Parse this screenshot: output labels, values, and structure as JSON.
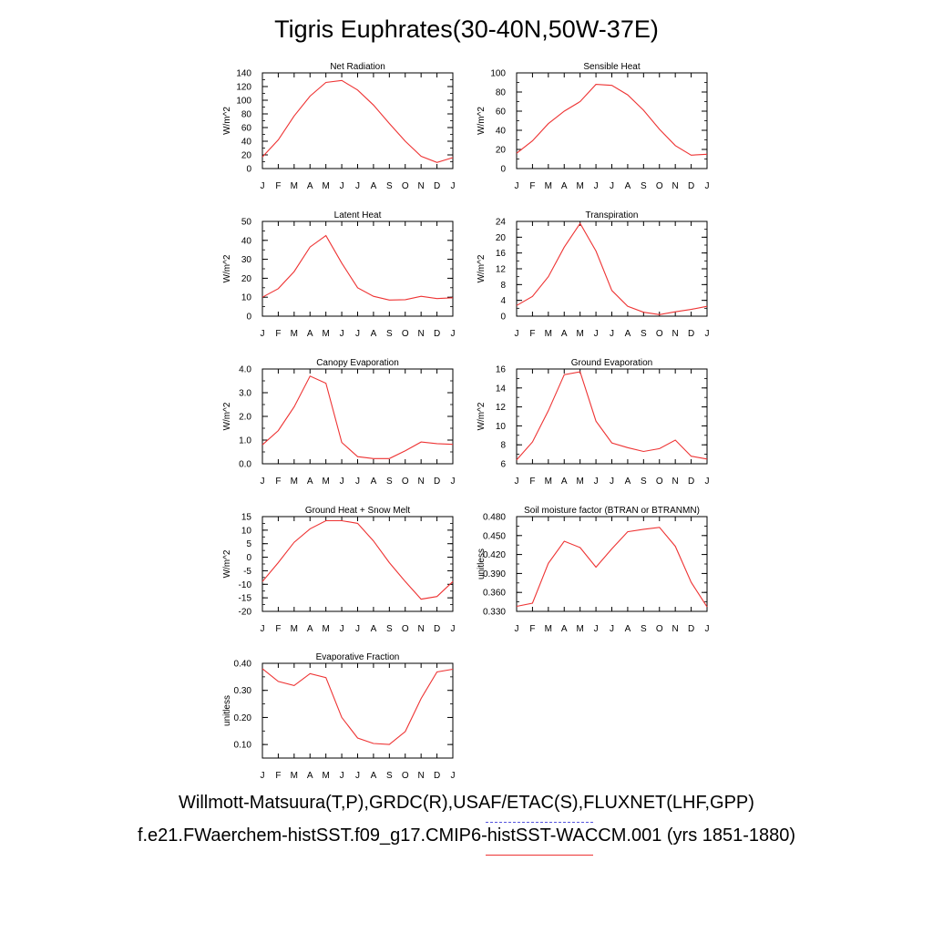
{
  "title": "Tigris Euphrates(30-40N,50W-37E)",
  "legend": {
    "observations": "Willmott-Matsuura(T,P),GRDC(R),USAF/ETAC(S),FLUXNET(LHF,GPP)",
    "observations_color": "#5555dd",
    "model": "f.e21.FWaerchem-histSST.f09_g17.CMIP6-histSST-WACCM.001 (yrs 1851-1880)",
    "model_color": "#ee3333"
  },
  "chart_data": [
    {
      "type": "line",
      "title": "Net Radiation",
      "ylabel": "W/m^2",
      "categories": [
        "J",
        "F",
        "M",
        "A",
        "M",
        "J",
        "J",
        "A",
        "S",
        "O",
        "N",
        "D",
        "J"
      ],
      "ylim": [
        0,
        140
      ],
      "yticks": [
        "0",
        "20",
        "40",
        "60",
        "80",
        "100",
        "120",
        "140"
      ],
      "minor_step": 10,
      "series": [
        {
          "values": [
            17,
            42,
            77,
            106,
            126,
            129,
            115,
            93,
            66,
            40,
            18,
            9,
            16
          ]
        }
      ]
    },
    {
      "type": "line",
      "title": "Sensible Heat",
      "ylabel": "W/m^2",
      "categories": [
        "J",
        "F",
        "M",
        "A",
        "M",
        "J",
        "J",
        "A",
        "S",
        "O",
        "N",
        "D",
        "J"
      ],
      "ylim": [
        0,
        100
      ],
      "yticks": [
        "0",
        "20",
        "40",
        "60",
        "80",
        "100"
      ],
      "minor_step": 10,
      "series": [
        {
          "values": [
            16,
            29,
            47,
            60,
            70,
            88,
            87,
            77,
            61,
            41,
            24,
            14,
            15
          ]
        }
      ]
    },
    {
      "type": "line",
      "title": "Latent Heat",
      "ylabel": "W/m^2",
      "categories": [
        "J",
        "F",
        "M",
        "A",
        "M",
        "J",
        "J",
        "A",
        "S",
        "O",
        "N",
        "D",
        "J"
      ],
      "ylim": [
        0,
        50
      ],
      "yticks": [
        "0",
        "10",
        "20",
        "30",
        "40",
        "50"
      ],
      "minor_step": 5,
      "series": [
        {
          "values": [
            10,
            14.5,
            23.5,
            36.5,
            42.5,
            28,
            15,
            10.5,
            8.5,
            8.7,
            10.5,
            9.3,
            9.7
          ]
        }
      ]
    },
    {
      "type": "line",
      "title": "Transpiration",
      "ylabel": "W/m^2",
      "categories": [
        "J",
        "F",
        "M",
        "A",
        "M",
        "J",
        "J",
        "A",
        "S",
        "O",
        "N",
        "D",
        "J"
      ],
      "ylim": [
        0,
        24
      ],
      "yticks": [
        "0",
        "4",
        "8",
        "12",
        "16",
        "20",
        "24"
      ],
      "minor_step": 2,
      "series": [
        {
          "values": [
            2.7,
            5,
            10,
            17.5,
            23.5,
            16.5,
            6.5,
            2.5,
            1,
            0.4,
            1.1,
            1.7,
            2.5
          ]
        }
      ]
    },
    {
      "type": "line",
      "title": "Canopy Evaporation",
      "ylabel": "W/m^2",
      "categories": [
        "J",
        "F",
        "M",
        "A",
        "M",
        "J",
        "J",
        "A",
        "S",
        "O",
        "N",
        "D",
        "J"
      ],
      "ylim": [
        0,
        4
      ],
      "yticks": [
        "0.0",
        "1.0",
        "2.0",
        "3.0",
        "4.0"
      ],
      "minor_step": 0.5,
      "series": [
        {
          "values": [
            0.8,
            1.4,
            2.4,
            3.7,
            3.4,
            0.9,
            0.3,
            0.22,
            0.22,
            0.55,
            0.92,
            0.85,
            0.82
          ]
        }
      ]
    },
    {
      "type": "line",
      "title": "Ground Evaporation",
      "ylabel": "W/m^2",
      "categories": [
        "J",
        "F",
        "M",
        "A",
        "M",
        "J",
        "J",
        "A",
        "S",
        "O",
        "N",
        "D",
        "J"
      ],
      "ylim": [
        6,
        16
      ],
      "yticks": [
        "6",
        "8",
        "10",
        "12",
        "14",
        "16"
      ],
      "minor_step": 1,
      "series": [
        {
          "values": [
            6.4,
            8.3,
            11.6,
            15.4,
            15.7,
            10.5,
            8.2,
            7.7,
            7.3,
            7.6,
            8.5,
            6.8,
            6.5
          ]
        }
      ]
    },
    {
      "type": "line",
      "title": "Ground Heat + Snow Melt",
      "ylabel": "W/m^2",
      "categories": [
        "J",
        "F",
        "M",
        "A",
        "M",
        "J",
        "J",
        "A",
        "S",
        "O",
        "N",
        "D",
        "J"
      ],
      "ylim": [
        -20,
        15
      ],
      "yticks": [
        "-20",
        "-15",
        "-10",
        "-5",
        "0",
        "5",
        "10",
        "15"
      ],
      "minor_step": 2.5,
      "series": [
        {
          "values": [
            -9,
            -2,
            5.5,
            10.5,
            13.5,
            13.5,
            12.5,
            6,
            -2,
            -9,
            -15.5,
            -14.5,
            -9
          ]
        }
      ]
    },
    {
      "type": "line",
      "title": "Soil moisture factor (BTRAN or BTRANMN)",
      "ylabel": "unitless",
      "categories": [
        "J",
        "F",
        "M",
        "A",
        "M",
        "J",
        "J",
        "A",
        "S",
        "O",
        "N",
        "D",
        "J"
      ],
      "ylim": [
        0.33,
        0.48
      ],
      "yticks": [
        "0.330",
        "0.360",
        "0.390",
        "0.420",
        "0.450",
        "0.480"
      ],
      "minor_step": 0.015,
      "series": [
        {
          "values": [
            0.338,
            0.343,
            0.406,
            0.441,
            0.431,
            0.4,
            0.429,
            0.456,
            0.46,
            0.463,
            0.433,
            0.376,
            0.337
          ]
        }
      ]
    },
    {
      "type": "line",
      "title": "Evaporative Fraction",
      "ylabel": "unitless",
      "categories": [
        "J",
        "F",
        "M",
        "A",
        "M",
        "J",
        "J",
        "A",
        "S",
        "O",
        "N",
        "D",
        "J"
      ],
      "ylim": [
        0.05,
        0.4
      ],
      "yticks": [
        "0.10",
        "0.20",
        "0.30",
        "0.40"
      ],
      "minor_step": 0.05,
      "series": [
        {
          "values": [
            0.38,
            0.333,
            0.318,
            0.362,
            0.347,
            0.2,
            0.124,
            0.104,
            0.1,
            0.148,
            0.27,
            0.368,
            0.378
          ]
        }
      ]
    }
  ]
}
